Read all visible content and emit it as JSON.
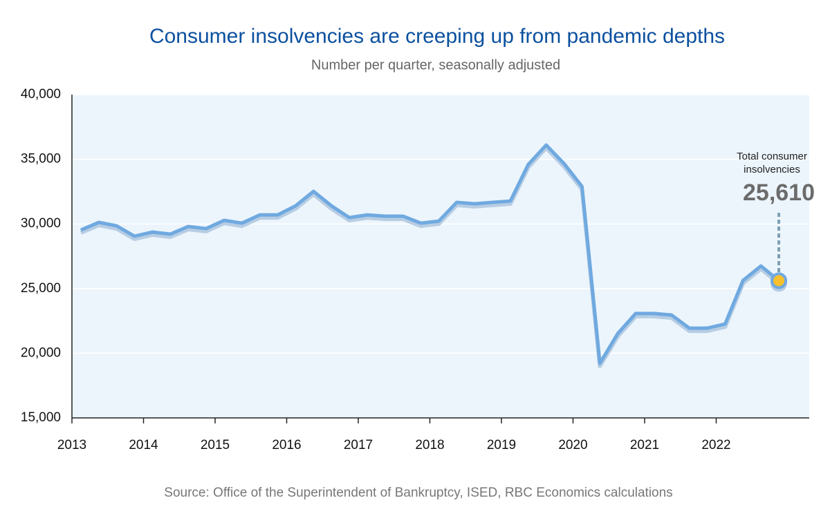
{
  "chart_data": {
    "type": "line",
    "title": "Consumer insolvencies are creeping up from pandemic depths",
    "subtitle": "Number per quarter, seasonally adjusted",
    "source": "Source: Office of the Superintendent of Bankruptcy, ISED, RBC Economics calculations",
    "annotation": "Total consumer insolvencies",
    "x": [
      2013.125,
      2013.375,
      2013.625,
      2013.875,
      2014.125,
      2014.375,
      2014.625,
      2014.875,
      2015.125,
      2015.375,
      2015.625,
      2015.875,
      2016.125,
      2016.375,
      2016.625,
      2016.875,
      2017.125,
      2017.375,
      2017.625,
      2017.875,
      2018.125,
      2018.375,
      2018.625,
      2018.875,
      2019.125,
      2019.375,
      2019.625,
      2019.875,
      2020.125,
      2020.375,
      2020.625,
      2020.875,
      2021.125,
      2021.375,
      2021.625,
      2021.875,
      2022.125,
      2022.375,
      2022.625,
      2022.875
    ],
    "series": [
      {
        "name": "Total consumer insolvencies",
        "color": "#6fa9e0",
        "values": [
          29530,
          30120,
          29850,
          29050,
          29370,
          29210,
          29800,
          29640,
          30280,
          30060,
          30700,
          30700,
          31400,
          32520,
          31400,
          30490,
          30700,
          30600,
          30600,
          30060,
          30220,
          31670,
          31560,
          31670,
          31770,
          34600,
          36100,
          34660,
          32900,
          19220,
          21520,
          23070,
          23070,
          22960,
          21940,
          21940,
          22260,
          25630,
          26750,
          25610
        ],
        "value_labels": [
          null,
          null,
          null,
          null,
          null,
          null,
          null,
          null,
          null,
          null,
          null,
          null,
          null,
          null,
          null,
          null,
          null,
          null,
          null,
          null,
          null,
          null,
          null,
          null,
          null,
          null,
          null,
          null,
          null,
          null,
          null,
          null,
          null,
          null,
          null,
          null,
          null,
          null,
          null,
          "25,610"
        ]
      }
    ],
    "xlim": [
      2013,
      2023.3
    ],
    "xticks": [
      2013,
      2014,
      2015,
      2016,
      2017,
      2018,
      2019,
      2020,
      2021,
      2022
    ],
    "ylim": [
      15000,
      40000
    ],
    "yticks": [
      {
        "value": 15000,
        "label": "15,000"
      },
      {
        "value": 20000,
        "label": "20,000"
      },
      {
        "value": 25000,
        "label": "25,000"
      },
      {
        "value": 30000,
        "label": "30,000"
      },
      {
        "value": 35000,
        "label": "35,000"
      },
      {
        "value": 40000,
        "label": "40,000"
      }
    ],
    "grid": true
  }
}
